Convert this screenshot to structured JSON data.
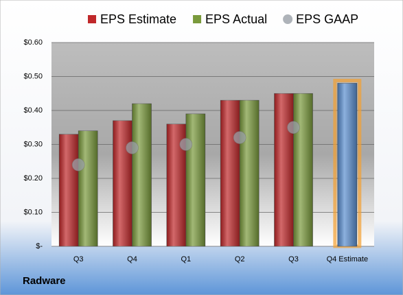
{
  "chart_data": {
    "type": "bar",
    "categories": [
      "Q3",
      "Q4",
      "Q1",
      "Q2",
      "Q3",
      "Q4 Estimate"
    ],
    "series": [
      {
        "name": "EPS Estimate",
        "color": "#c0282a",
        "values": [
          0.33,
          0.37,
          0.36,
          0.43,
          0.45,
          0.48
        ],
        "colors": [
          "#c0282a",
          "#c0282a",
          "#c0282a",
          "#c0282a",
          "#c0282a",
          "#5b8fd0"
        ]
      },
      {
        "name": "EPS Actual",
        "color": "#7a9a3c",
        "values": [
          0.34,
          0.42,
          0.39,
          0.43,
          0.45,
          null
        ]
      },
      {
        "name": "EPS GAAP",
        "color": "#9aa0a8",
        "marker": "circle",
        "values": [
          0.24,
          0.29,
          0.3,
          0.32,
          0.35,
          null
        ]
      }
    ],
    "ylim": [
      0,
      0.6
    ],
    "yticks": [
      {
        "value": 0,
        "label": "$-"
      },
      {
        "value": 0.1,
        "label": "$0.10"
      },
      {
        "value": 0.2,
        "label": "$0.20"
      },
      {
        "value": 0.3,
        "label": "$0.30"
      },
      {
        "value": 0.4,
        "label": "$0.40"
      },
      {
        "value": 0.5,
        "label": "$0.50"
      },
      {
        "value": 0.6,
        "label": "$0.60"
      }
    ],
    "grid": true,
    "legend": "top",
    "footer": "Radware"
  }
}
